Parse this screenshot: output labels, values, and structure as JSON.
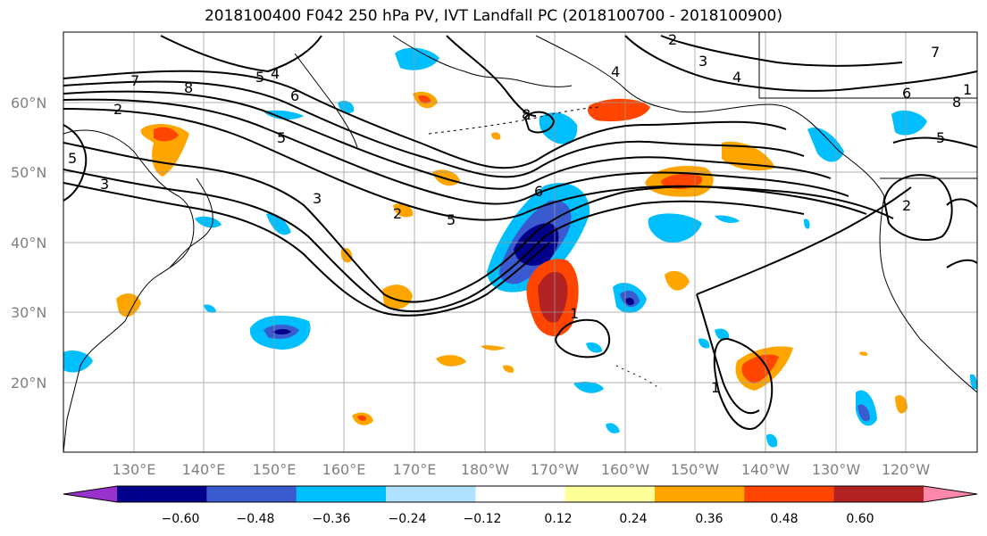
{
  "title": "2018100400 F042 250 hPa PV, IVT Landfall PC (2018100700 - 2018100900)",
  "lat_labels": [
    "60°N",
    "50°N",
    "40°N",
    "30°N",
    "20°N"
  ],
  "lon_labels": [
    "130°E",
    "140°E",
    "150°E",
    "160°E",
    "170°E",
    "180°W",
    "170°W",
    "160°W",
    "150°W",
    "140°W",
    "130°W",
    "120°W"
  ],
  "colorbar": {
    "colors": [
      "#9932cc",
      "#00008b",
      "#3a5bcf",
      "#00bfff",
      "#b0e2ff",
      "#ffffff",
      "#ffff99",
      "#ffa500",
      "#ff4500",
      "#b22222",
      "#ff88aa"
    ],
    "tick_labels": [
      "−0.60",
      "−0.48",
      "−0.36",
      "−0.24",
      "−0.12",
      "0.12",
      "0.24",
      "0.36",
      "0.48",
      "0.60"
    ]
  },
  "contour_labels": [
    "2",
    "7",
    "8",
    "5",
    "4",
    "6",
    "3",
    "5",
    "3",
    "2",
    "5",
    "4",
    "6",
    "8",
    "1",
    "2",
    "7",
    "6",
    "8",
    "5",
    "2",
    "1",
    "3",
    "1",
    "5",
    "4"
  ]
}
